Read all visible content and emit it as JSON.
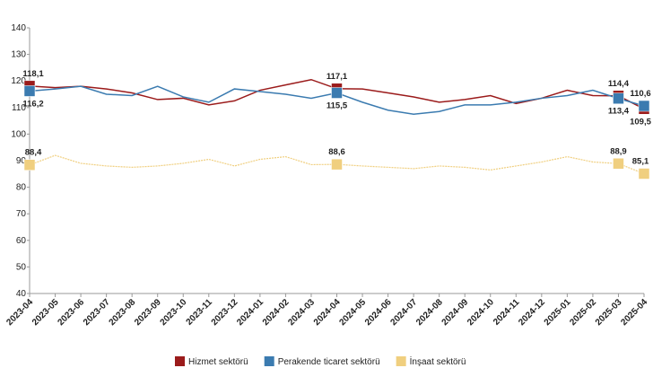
{
  "chart_data": {
    "type": "line",
    "categories": [
      "2023-04",
      "2023-05",
      "2023-06",
      "2023-07",
      "2023-08",
      "2023-09",
      "2023-10",
      "2023-11",
      "2023-12",
      "2024-01",
      "2024-02",
      "2024-03",
      "2024-04",
      "2024-05",
      "2024-06",
      "2024-07",
      "2024-08",
      "2024-09",
      "2024-10",
      "2024-11",
      "2024-12",
      "2025-01",
      "2025-02",
      "2025-03",
      "2025-04"
    ],
    "series": [
      {
        "name": "Hizmet sektörü",
        "color": "#9b1b1b",
        "values": [
          118.1,
          117.5,
          118,
          117,
          115.5,
          113,
          113.5,
          111,
          112.5,
          116.5,
          118.5,
          120.5,
          117.1,
          117,
          115.5,
          114,
          112,
          113,
          114.5,
          111.5,
          113.5,
          116.5,
          114.5,
          114.4,
          109.5
        ],
        "value_labels": [
          "118,1",
          null,
          null,
          null,
          null,
          null,
          null,
          null,
          null,
          null,
          null,
          null,
          "117,1",
          null,
          null,
          null,
          null,
          null,
          null,
          null,
          null,
          null,
          null,
          "114,4",
          "109,5"
        ]
      },
      {
        "name": "Perakende ticaret sektörü",
        "color": "#3b7bb0",
        "values": [
          116.2,
          117,
          118,
          115,
          114.5,
          118,
          114,
          112,
          117,
          116,
          115,
          113.5,
          115.5,
          112,
          109,
          107.5,
          108.5,
          111,
          111,
          112,
          113.5,
          114.5,
          116.5,
          113.4,
          110.6
        ],
        "value_labels": [
          "116,2",
          null,
          null,
          null,
          null,
          null,
          null,
          null,
          null,
          null,
          null,
          null,
          "115,5",
          null,
          null,
          null,
          null,
          null,
          null,
          null,
          null,
          null,
          null,
          "113,4",
          "110,6"
        ]
      },
      {
        "name": "İnşaat sektörü",
        "color": "#f0cf7f",
        "values": [
          88.4,
          92,
          89,
          88,
          87.5,
          88,
          89,
          90.5,
          88,
          90.5,
          91.5,
          88.5,
          88.6,
          88,
          87.5,
          87,
          88,
          87.5,
          86.5,
          88,
          89.5,
          91.5,
          89.5,
          88.9,
          85.1
        ],
        "value_labels": [
          "88,4",
          null,
          null,
          null,
          null,
          null,
          null,
          null,
          null,
          null,
          null,
          null,
          "88,6",
          null,
          null,
          null,
          null,
          null,
          null,
          null,
          null,
          null,
          null,
          "88,9",
          "85,1"
        ]
      }
    ],
    "ylim": [
      40,
      140
    ],
    "yticks": [
      40,
      50,
      60,
      70,
      80,
      90,
      100,
      110,
      120,
      130,
      140
    ],
    "grid": false
  }
}
